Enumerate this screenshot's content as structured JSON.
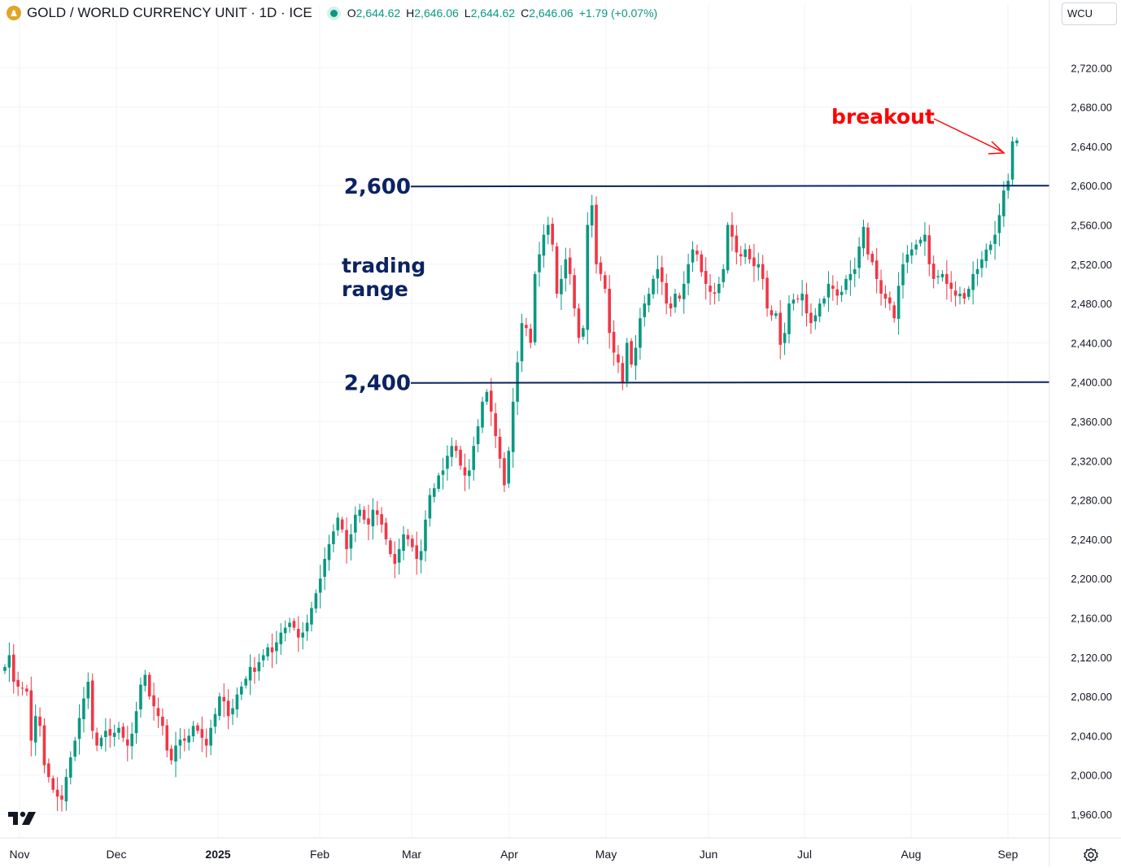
{
  "header": {
    "title": "GOLD / WORLD CURRENCY UNIT · 1D · ICE",
    "open_label": "O",
    "open_value": "2,644.62",
    "high_label": "H",
    "high_value": "2,646.06",
    "low_label": "L",
    "low_value": "2,644.62",
    "close_label": "C",
    "close_value": "2,646.06",
    "change": "+1.79 (+0.07%)"
  },
  "currency": "WCU",
  "colors": {
    "up": "#089981",
    "down": "#f23645",
    "annotation": "#0b2362",
    "breakout": "#ff0000"
  },
  "chart_data": {
    "type": "candlestick",
    "title": "GOLD / WORLD CURRENCY UNIT · 1D · ICE",
    "x_ticks": [
      "Nov",
      "Dec",
      "2025",
      "Feb",
      "Mar",
      "Apr",
      "May",
      "Jun",
      "Jul",
      "Aug",
      "Sep"
    ],
    "y_ticks": [
      "2,720.00",
      "2,680.00",
      "2,640.00",
      "2,600.00",
      "2,560.00",
      "2,520.00",
      "2,480.00",
      "2,440.00",
      "2,400.00",
      "2,360.00",
      "2,320.00",
      "2,280.00",
      "2,240.00",
      "2,200.00",
      "2,160.00",
      "2,120.00",
      "2,080.00",
      "2,040.00",
      "2,000.00",
      "1,960.00"
    ],
    "ylim": [
      1936,
      2760
    ],
    "grid": true,
    "horizontal_lines": [
      {
        "label": "2,600",
        "value": 2600
      },
      {
        "label": "2,400",
        "value": 2400
      }
    ],
    "annotations": [
      {
        "text_line1": "trading",
        "text_line2": "range"
      },
      {
        "text": "breakout"
      }
    ],
    "series_close": [
      2110,
      2122,
      2095,
      2090,
      2088,
      2085,
      2035,
      2060,
      2050,
      2010,
      1998,
      1985,
      1978,
      1975,
      1998,
      2018,
      2035,
      2058,
      2078,
      2095,
      2045,
      2030,
      2038,
      2045,
      2040,
      2043,
      2048,
      2038,
      2030,
      2042,
      2065,
      2092,
      2102,
      2080,
      2070,
      2060,
      2050,
      2025,
      2015,
      2030,
      2036,
      2035,
      2040,
      2050,
      2045,
      2038,
      2030,
      2048,
      2062,
      2080,
      2075,
      2060,
      2068,
      2082,
      2090,
      2098,
      2110,
      2105,
      2115,
      2122,
      2130,
      2125,
      2135,
      2145,
      2150,
      2155,
      2150,
      2140,
      2145,
      2155,
      2170,
      2185,
      2200,
      2220,
      2235,
      2248,
      2262,
      2250,
      2230,
      2245,
      2265,
      2270,
      2260,
      2255,
      2270,
      2265,
      2255,
      2240,
      2225,
      2215,
      2230,
      2245,
      2240,
      2232,
      2220,
      2228,
      2260,
      2285,
      2292,
      2305,
      2310,
      2325,
      2335,
      2330,
      2315,
      2305,
      2310,
      2335,
      2355,
      2380,
      2390,
      2370,
      2345,
      2322,
      2295,
      2330,
      2380,
      2420,
      2460,
      2455,
      2440,
      2510,
      2530,
      2550,
      2560,
      2540,
      2490,
      2505,
      2525,
      2510,
      2475,
      2445,
      2455,
      2560,
      2580,
      2520,
      2510,
      2495,
      2450,
      2430,
      2420,
      2400,
      2440,
      2418,
      2435,
      2465,
      2480,
      2490,
      2505,
      2515,
      2502,
      2480,
      2475,
      2490,
      2485,
      2500,
      2520,
      2535,
      2530,
      2512,
      2500,
      2492,
      2490,
      2500,
      2515,
      2560,
      2548,
      2532,
      2528,
      2535,
      2525,
      2518,
      2520,
      2505,
      2475,
      2468,
      2470,
      2438,
      2450,
      2480,
      2484,
      2485,
      2490,
      2470,
      2460,
      2468,
      2480,
      2485,
      2500,
      2495,
      2488,
      2492,
      2505,
      2510,
      2515,
      2538,
      2558,
      2530,
      2522,
      2505,
      2490,
      2485,
      2480,
      2465,
      2498,
      2520,
      2530,
      2535,
      2540,
      2545,
      2550,
      2520,
      2505,
      2508,
      2510,
      2500,
      2495,
      2488,
      2490,
      2485,
      2495,
      2510,
      2515,
      2525,
      2535,
      2540,
      2550,
      2570,
      2595,
      2605,
      2645,
      2646
    ]
  }
}
